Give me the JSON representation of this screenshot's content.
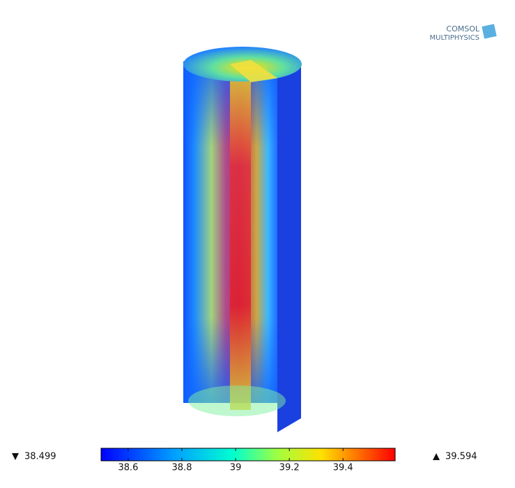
{
  "chart_data": {
    "type": "surface",
    "logo": [
      "COMSOL",
      "MULTIPHYSICS"
    ],
    "min": 38.499,
    "max": 39.594,
    "colorbar_ticks": [
      38.6,
      38.8,
      39,
      39.2,
      39.4
    ]
  }
}
